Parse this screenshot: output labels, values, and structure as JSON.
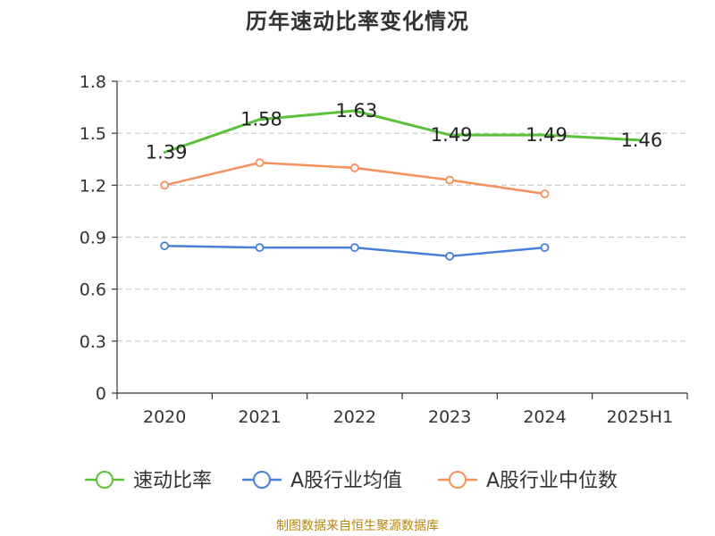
{
  "source_text": "制图数据来自恒生聚源数据库",
  "chart_data": {
    "type": "line",
    "title": "历年速动比率变化情况",
    "xlabel": "",
    "ylabel": "",
    "categories": [
      "2020",
      "2021",
      "2022",
      "2023",
      "2024",
      "2025H1"
    ],
    "ylim": [
      0,
      1.8
    ],
    "yticks": [
      0,
      0.3,
      0.6,
      0.9,
      1.2,
      1.5,
      1.8
    ],
    "ytick_labels": [
      "0",
      "0.3",
      "0.6",
      "0.9",
      "1.2",
      "1.5",
      "1.8"
    ],
    "grid": true,
    "legend_position": "bottom",
    "series": [
      {
        "name": "速动比率",
        "color": "#5cc13a",
        "values": [
          1.39,
          1.58,
          1.63,
          1.49,
          1.49,
          1.46
        ],
        "labels": [
          "1.39",
          "1.58",
          "1.63",
          "1.49",
          "1.49",
          "1.46"
        ],
        "show_labels": true,
        "show_markers": false,
        "line_width": 3
      },
      {
        "name": "A股行业均值",
        "color": "#4a7fd9",
        "values": [
          0.85,
          0.84,
          0.84,
          0.79,
          0.84,
          null
        ],
        "show_labels": false,
        "show_markers": true,
        "line_width": 2.5
      },
      {
        "name": "A股行业中位数",
        "color": "#f5915a",
        "values": [
          1.2,
          1.33,
          1.3,
          1.23,
          1.15,
          null
        ],
        "show_labels": false,
        "show_markers": true,
        "line_width": 2.5
      }
    ]
  }
}
